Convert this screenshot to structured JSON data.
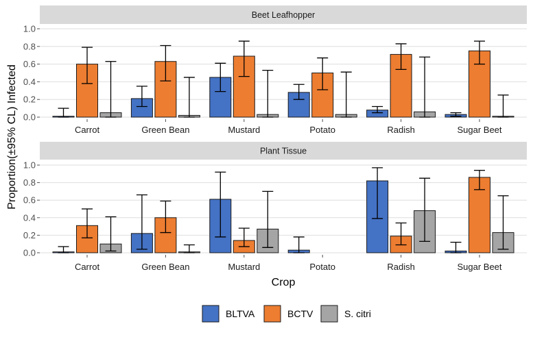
{
  "chart_data": {
    "type": "bar",
    "title": "",
    "xlabel": "Crop",
    "ylabel": "Proportion(±95% CL) Infected",
    "ylim": [
      0,
      1
    ],
    "yticks": [
      "0.0",
      "0.2",
      "0.4",
      "0.6",
      "0.8",
      "1.0"
    ],
    "ytick_values": [
      0,
      0.2,
      0.4,
      0.6,
      0.8,
      1.0
    ],
    "grid": true,
    "legend_position": "bottom",
    "categories": [
      "Carrot",
      "Green Bean",
      "Mustard",
      "Potato",
      "Radish",
      "Sugar Beet"
    ],
    "series_meta": [
      {
        "name": "BLTVA",
        "color": "#4472C4"
      },
      {
        "name": "BCTV",
        "color": "#ED7D31"
      },
      {
        "name": "S. citri",
        "color": "#A5A5A5"
      }
    ],
    "panels": [
      {
        "title": "Beet Leafhopper",
        "series": [
          {
            "name": "BLTVA",
            "values": [
              0.01,
              0.21,
              0.45,
              0.28,
              0.08,
              0.03
            ],
            "lower": [
              0.0,
              0.12,
              0.29,
              0.2,
              0.05,
              0.01
            ],
            "upper": [
              0.1,
              0.35,
              0.61,
              0.37,
              0.12,
              0.05
            ]
          },
          {
            "name": "BCTV",
            "values": [
              0.6,
              0.63,
              0.69,
              0.5,
              0.71,
              0.75
            ],
            "lower": [
              0.38,
              0.41,
              0.46,
              0.31,
              0.54,
              0.6
            ],
            "upper": [
              0.79,
              0.81,
              0.86,
              0.67,
              0.83,
              0.86
            ]
          },
          {
            "name": "S. citri",
            "values": [
              0.05,
              0.02,
              0.03,
              0.03,
              0.06,
              0.01
            ],
            "lower": [
              0.0,
              0.0,
              0.0,
              0.0,
              0.0,
              0.0
            ],
            "upper": [
              0.63,
              0.45,
              0.53,
              0.51,
              0.68,
              0.25
            ]
          }
        ]
      },
      {
        "title": "Plant Tissue",
        "series": [
          {
            "name": "BLTVA",
            "values": [
              0.01,
              0.22,
              0.61,
              0.03,
              0.82,
              0.02
            ],
            "lower": [
              0.0,
              0.04,
              0.18,
              0.0,
              0.39,
              0.0
            ],
            "upper": [
              0.07,
              0.66,
              0.92,
              0.18,
              0.97,
              0.12
            ]
          },
          {
            "name": "BCTV",
            "values": [
              0.31,
              0.4,
              0.14,
              null,
              0.19,
              0.86
            ],
            "lower": [
              0.17,
              0.23,
              0.07,
              null,
              0.09,
              0.72
            ],
            "upper": [
              0.5,
              0.59,
              0.28,
              null,
              0.34,
              0.94
            ]
          },
          {
            "name": "S. citri",
            "values": [
              0.1,
              0.01,
              0.27,
              null,
              0.48,
              0.23
            ],
            "lower": [
              0.02,
              0.0,
              0.06,
              null,
              0.13,
              0.04
            ],
            "upper": [
              0.41,
              0.09,
              0.7,
              null,
              0.85,
              0.65
            ]
          }
        ]
      }
    ]
  }
}
